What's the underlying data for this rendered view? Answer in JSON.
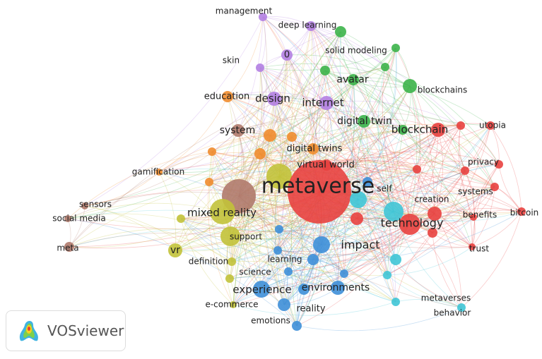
{
  "nodes": [
    {
      "label": "management"
    },
    {
      "label": "deep learning"
    },
    {
      "label": "solid modeling"
    },
    {
      "label": "skin"
    },
    {
      "label": "0"
    },
    {
      "label": "avatar"
    },
    {
      "label": "blockchains"
    },
    {
      "label": "education"
    },
    {
      "label": "design"
    },
    {
      "label": "internet"
    },
    {
      "label": "digital twin"
    },
    {
      "label": "blockchain"
    },
    {
      "label": "utopia"
    },
    {
      "label": "system"
    },
    {
      "label": "digital twins"
    },
    {
      "label": "gamification"
    },
    {
      "label": "virtual world"
    },
    {
      "label": "privacy"
    },
    {
      "label": "metaverse"
    },
    {
      "label": "self"
    },
    {
      "label": "systems"
    },
    {
      "label": "creation"
    },
    {
      "label": "sensors"
    },
    {
      "label": "social media"
    },
    {
      "label": "mixed reality"
    },
    {
      "label": "technology"
    },
    {
      "label": "benefits"
    },
    {
      "label": "bitcoin"
    },
    {
      "label": "support"
    },
    {
      "label": "impact"
    },
    {
      "label": "meta"
    },
    {
      "label": "vr"
    },
    {
      "label": "trust"
    },
    {
      "label": "definition"
    },
    {
      "label": "learning"
    },
    {
      "label": "science"
    },
    {
      "label": "experience"
    },
    {
      "label": "environments"
    },
    {
      "label": "metaverses"
    },
    {
      "label": "e-commerce"
    },
    {
      "label": "reality"
    },
    {
      "label": "behavior"
    },
    {
      "label": "emotions"
    }
  ],
  "logo": {
    "text": "VOSviewer"
  }
}
